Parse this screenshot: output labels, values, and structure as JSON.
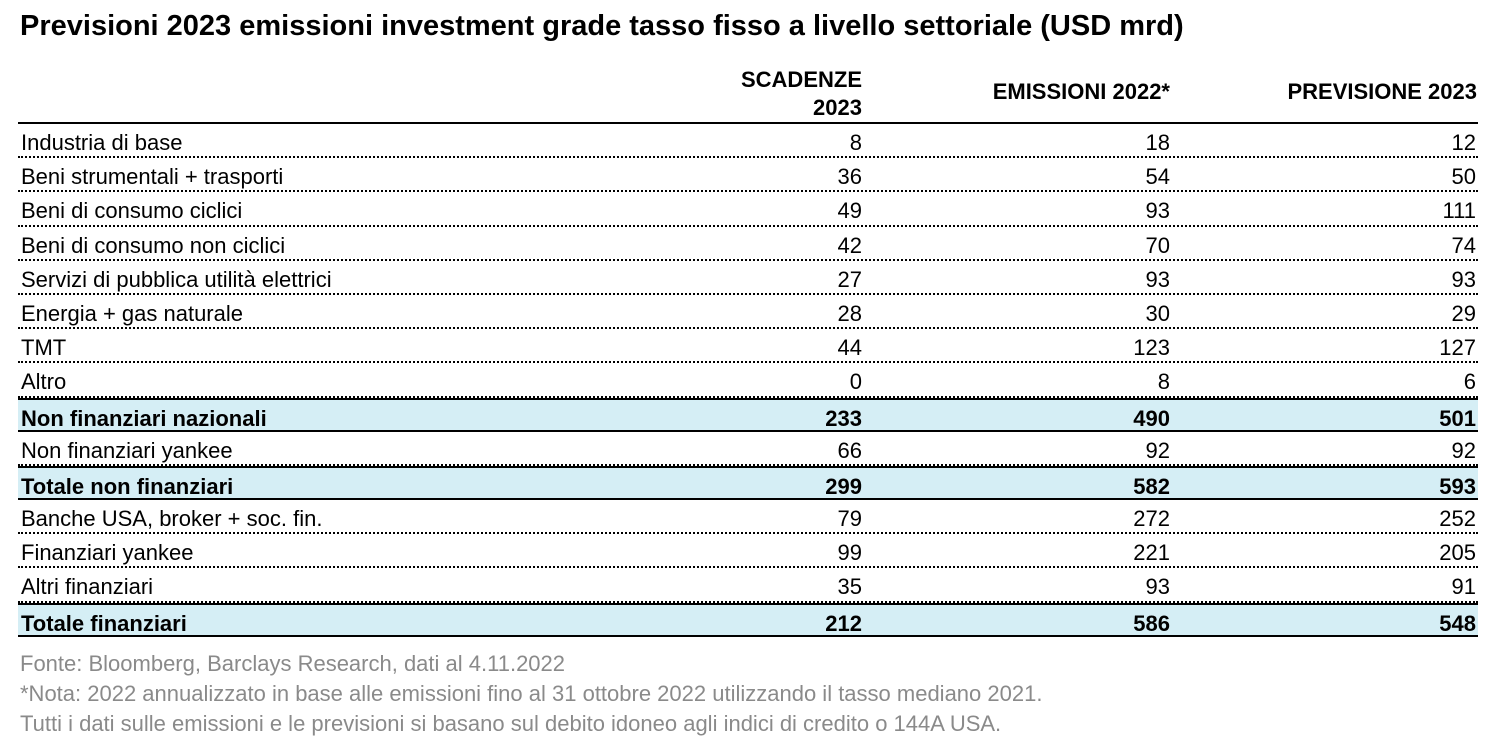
{
  "title": "Previsioni 2023 emissioni investment grade tasso fisso a livello settoriale (USD mrd)",
  "columns": {
    "col1_line1": "SCADENZE",
    "col1_line2": "2023",
    "col2": "EMISSIONI 2022*",
    "col3": "PREVISIONE 2023"
  },
  "chart_data": {
    "type": "table",
    "title": "Previsioni 2023 emissioni investment grade tasso fisso a livello settoriale (USD mrd)",
    "headers": [
      "",
      "SCADENZE 2023",
      "EMISSIONI 2022*",
      "PREVISIONE 2023"
    ],
    "rows": [
      {
        "label": "Industria di base",
        "v1": "8",
        "v2": "18",
        "v3": "12",
        "total": false
      },
      {
        "label": "Beni strumentali + trasporti",
        "v1": "36",
        "v2": "54",
        "v3": "50",
        "total": false
      },
      {
        "label": "Beni di consumo ciclici",
        "v1": "49",
        "v2": "93",
        "v3": "111",
        "total": false
      },
      {
        "label": "Beni di consumo non ciclici",
        "v1": "42",
        "v2": "70",
        "v3": "74",
        "total": false
      },
      {
        "label": "Servizi di pubblica utilità elettrici",
        "v1": "27",
        "v2": "93",
        "v3": "93",
        "total": false
      },
      {
        "label": "Energia + gas naturale",
        "v1": "28",
        "v2": "30",
        "v3": "29",
        "total": false
      },
      {
        "label": "TMT",
        "v1": "44",
        "v2": "123",
        "v3": "127",
        "total": false
      },
      {
        "label": "Altro",
        "v1": "0",
        "v2": "8",
        "v3": "6",
        "total": false
      },
      {
        "label": "Non finanziari nazionali",
        "v1": "233",
        "v2": "490",
        "v3": "501",
        "total": true
      },
      {
        "label": "Non finanziari yankee",
        "v1": "66",
        "v2": "92",
        "v3": "92",
        "total": false
      },
      {
        "label": "Totale non finanziari",
        "v1": "299",
        "v2": "582",
        "v3": "593",
        "total": true
      },
      {
        "label": "Banche USA, broker + soc. fin.",
        "v1": "79",
        "v2": "272",
        "v3": "252",
        "total": false
      },
      {
        "label": "Finanziari yankee",
        "v1": "99",
        "v2": "221",
        "v3": "205",
        "total": false
      },
      {
        "label": "Altri finanziari",
        "v1": "35",
        "v2": "93",
        "v3": "91",
        "total": false
      },
      {
        "label": "Totale finanziari",
        "v1": "212",
        "v2": "586",
        "v3": "548",
        "total": true
      }
    ]
  },
  "colors": {
    "total_row_bg": "#d5eef5",
    "footnote_text": "#8a8a8a"
  },
  "footnotes": {
    "source": "Fonte: Bloomberg, Barclays Research, dati al 4.11.2022",
    "note": "*Nota: 2022 annualizzato in base alle emissioni fino al 31 ottobre 2022 utilizzando il tasso mediano 2021.",
    "basis": "Tutti i dati sulle emissioni e le previsioni si basano sul debito idoneo agli indici di credito o 144A USA."
  }
}
